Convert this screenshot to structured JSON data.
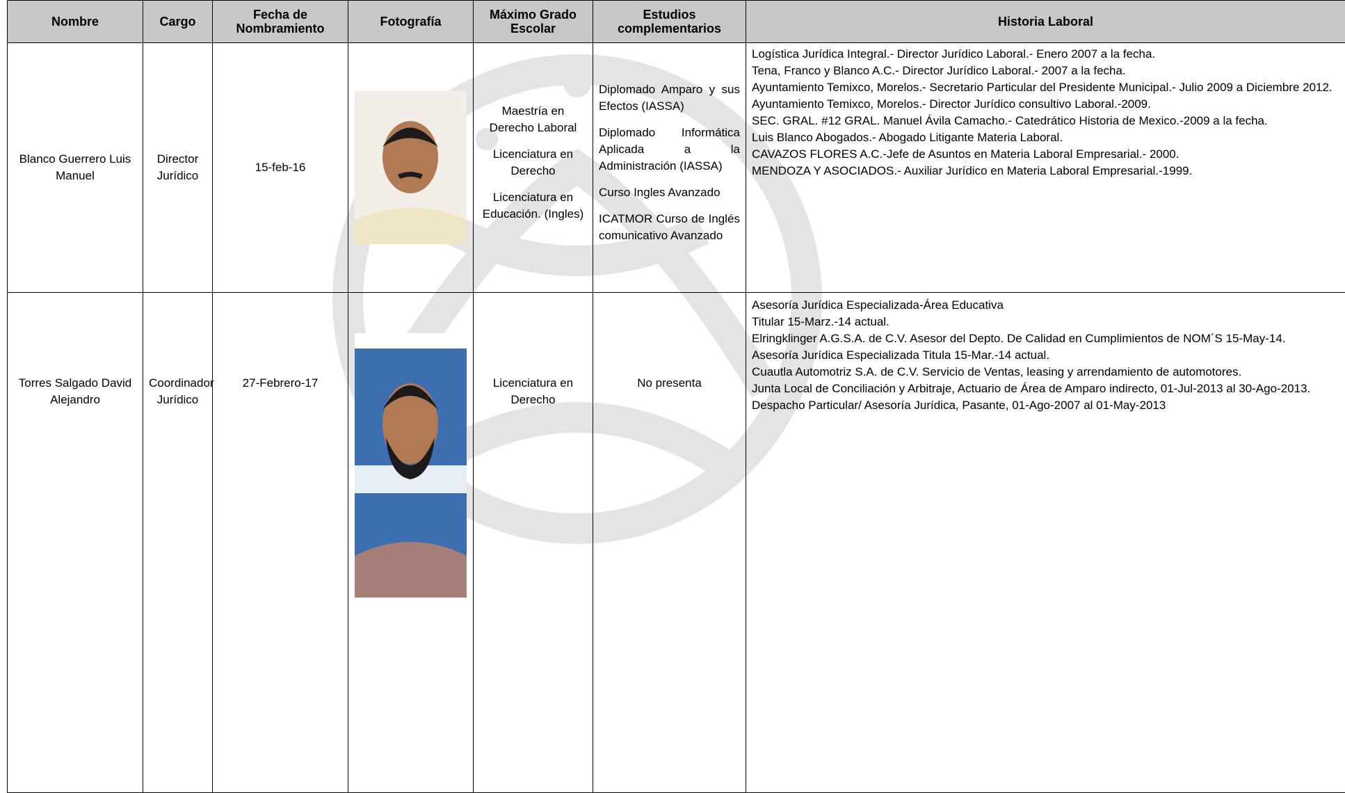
{
  "table": {
    "headers": [
      "Nombre",
      "Cargo",
      "Fecha de Nombramiento",
      "Fotografía",
      "Máximo Grado Escolar",
      "Estudios complementarios",
      "Historia Laboral"
    ],
    "rows": [
      {
        "nombre": "Blanco Guerrero Luis Manuel",
        "cargo": "Director Jurídico",
        "fecha": "15-feb-16",
        "grado": [
          "Maestría en Derecho Laboral",
          "Licenciatura en Derecho",
          "Licenciatura en Educación. (Ingles)"
        ],
        "estudios": [
          "Diplomado Amparo y sus Efectos (IASSA)",
          "Diplomado Informática Aplicada a la Administración (IASSA)",
          "Curso Ingles Avanzado",
          "ICATMOR Curso de Inglés comunicativo Avanzado"
        ],
        "historia": [
          "Logística Jurídica Integral.- Director Jurídico Laboral.- Enero 2007 a la fecha.",
          "Tena, Franco y Blanco A.C.- Director Jurídico Laboral.- 2007 a la fecha.",
          "Ayuntamiento Temixco, Morelos.- Secretario Particular del Presidente Municipal.- Julio 2009 a Diciembre 2012.",
          "Ayuntamiento Temixco, Morelos.- Director Jurídico consultivo Laboral.-2009.",
          "SEC. GRAL. #12 GRAL. Manuel Ávila Camacho.- Catedrático Historia de Mexico.-2009 a la fecha.",
          "Luis Blanco Abogados.- Abogado Litigante Materia Laboral.",
          "CAVAZOS FLORES A.C.-Jefe de Asuntos en Materia Laboral Empresarial.- 2000.",
          "MENDOZA Y ASOCIADOS.- Auxiliar Jurídico en Materia Laboral Empresarial.-1999."
        ]
      },
      {
        "nombre": "Torres Salgado David Alejandro",
        "cargo": "Coordinador Jurídico",
        "fecha": "27-Febrero-17",
        "grado": [
          "Licenciatura en Derecho"
        ],
        "estudios": [
          "No presenta"
        ],
        "historia": [
          "Asesoría Jurídica Especializada-Área Educativa",
          "Titular 15-Marz.-14 actual.",
          "Elringklinger A.G.S.A. de C.V. Asesor del Depto. De Calidad en Cumplimientos de NOM´S 15-May-14.",
          "Asesoría Jurídica Especializada Titula 15-Mar.-14 actual.",
          "Cuautla Automotriz S.A. de C.V. Servicio de Ventas, leasing y arrendamiento de automotores.",
          "Junta Local de Conciliación y Arbitraje, Actuario de Área de Amparo indirecto, 01-Jul-2013 al 30-Ago-2013.",
          "Despacho Particular/ Asesoría Jurídica, Pasante, 01-Ago-2007 al 01-May-2013"
        ]
      }
    ]
  }
}
